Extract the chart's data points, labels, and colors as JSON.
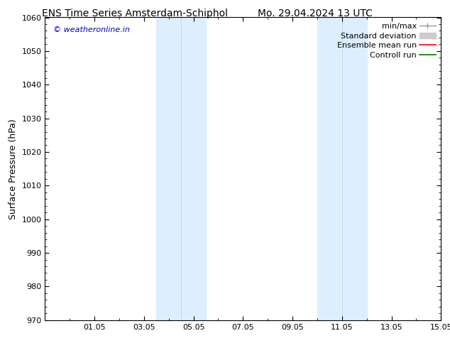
{
  "title_left": "ENS Time Series Amsterdam-Schiphol",
  "title_right": "Mo. 29.04.2024 13 UTC",
  "ylabel": "Surface Pressure (hPa)",
  "ylim": [
    970,
    1060
  ],
  "yticks": [
    970,
    980,
    990,
    1000,
    1010,
    1020,
    1030,
    1040,
    1050,
    1060
  ],
  "xlim": [
    0,
    16
  ],
  "xtick_labels": [
    "01.05",
    "03.05",
    "05.05",
    "07.05",
    "09.05",
    "11.05",
    "13.05",
    "15.05"
  ],
  "xtick_positions": [
    2,
    4,
    6,
    8,
    10,
    12,
    14,
    16
  ],
  "shaded_bands": [
    {
      "x_start": 4.5,
      "x_end": 5.5
    },
    {
      "x_start": 5.5,
      "x_end": 6.5
    },
    {
      "x_start": 11.0,
      "x_end": 12.0
    },
    {
      "x_start": 12.0,
      "x_end": 13.0
    }
  ],
  "shaded_color": "#ddeeff",
  "watermark_text": "© weatheronline.in",
  "watermark_color": "#0000cc",
  "legend_entries": [
    {
      "label": "min/max",
      "color": "#999999",
      "lw": 1.0
    },
    {
      "label": "Standard deviation",
      "color": "#cccccc",
      "lw": 5
    },
    {
      "label": "Ensemble mean run",
      "color": "#ff0000",
      "lw": 1.2
    },
    {
      "label": "Controll run",
      "color": "#007700",
      "lw": 1.2
    }
  ],
  "bg_color": "#ffffff",
  "title_fontsize": 10,
  "axis_label_fontsize": 9,
  "tick_fontsize": 8,
  "legend_fontsize": 8
}
